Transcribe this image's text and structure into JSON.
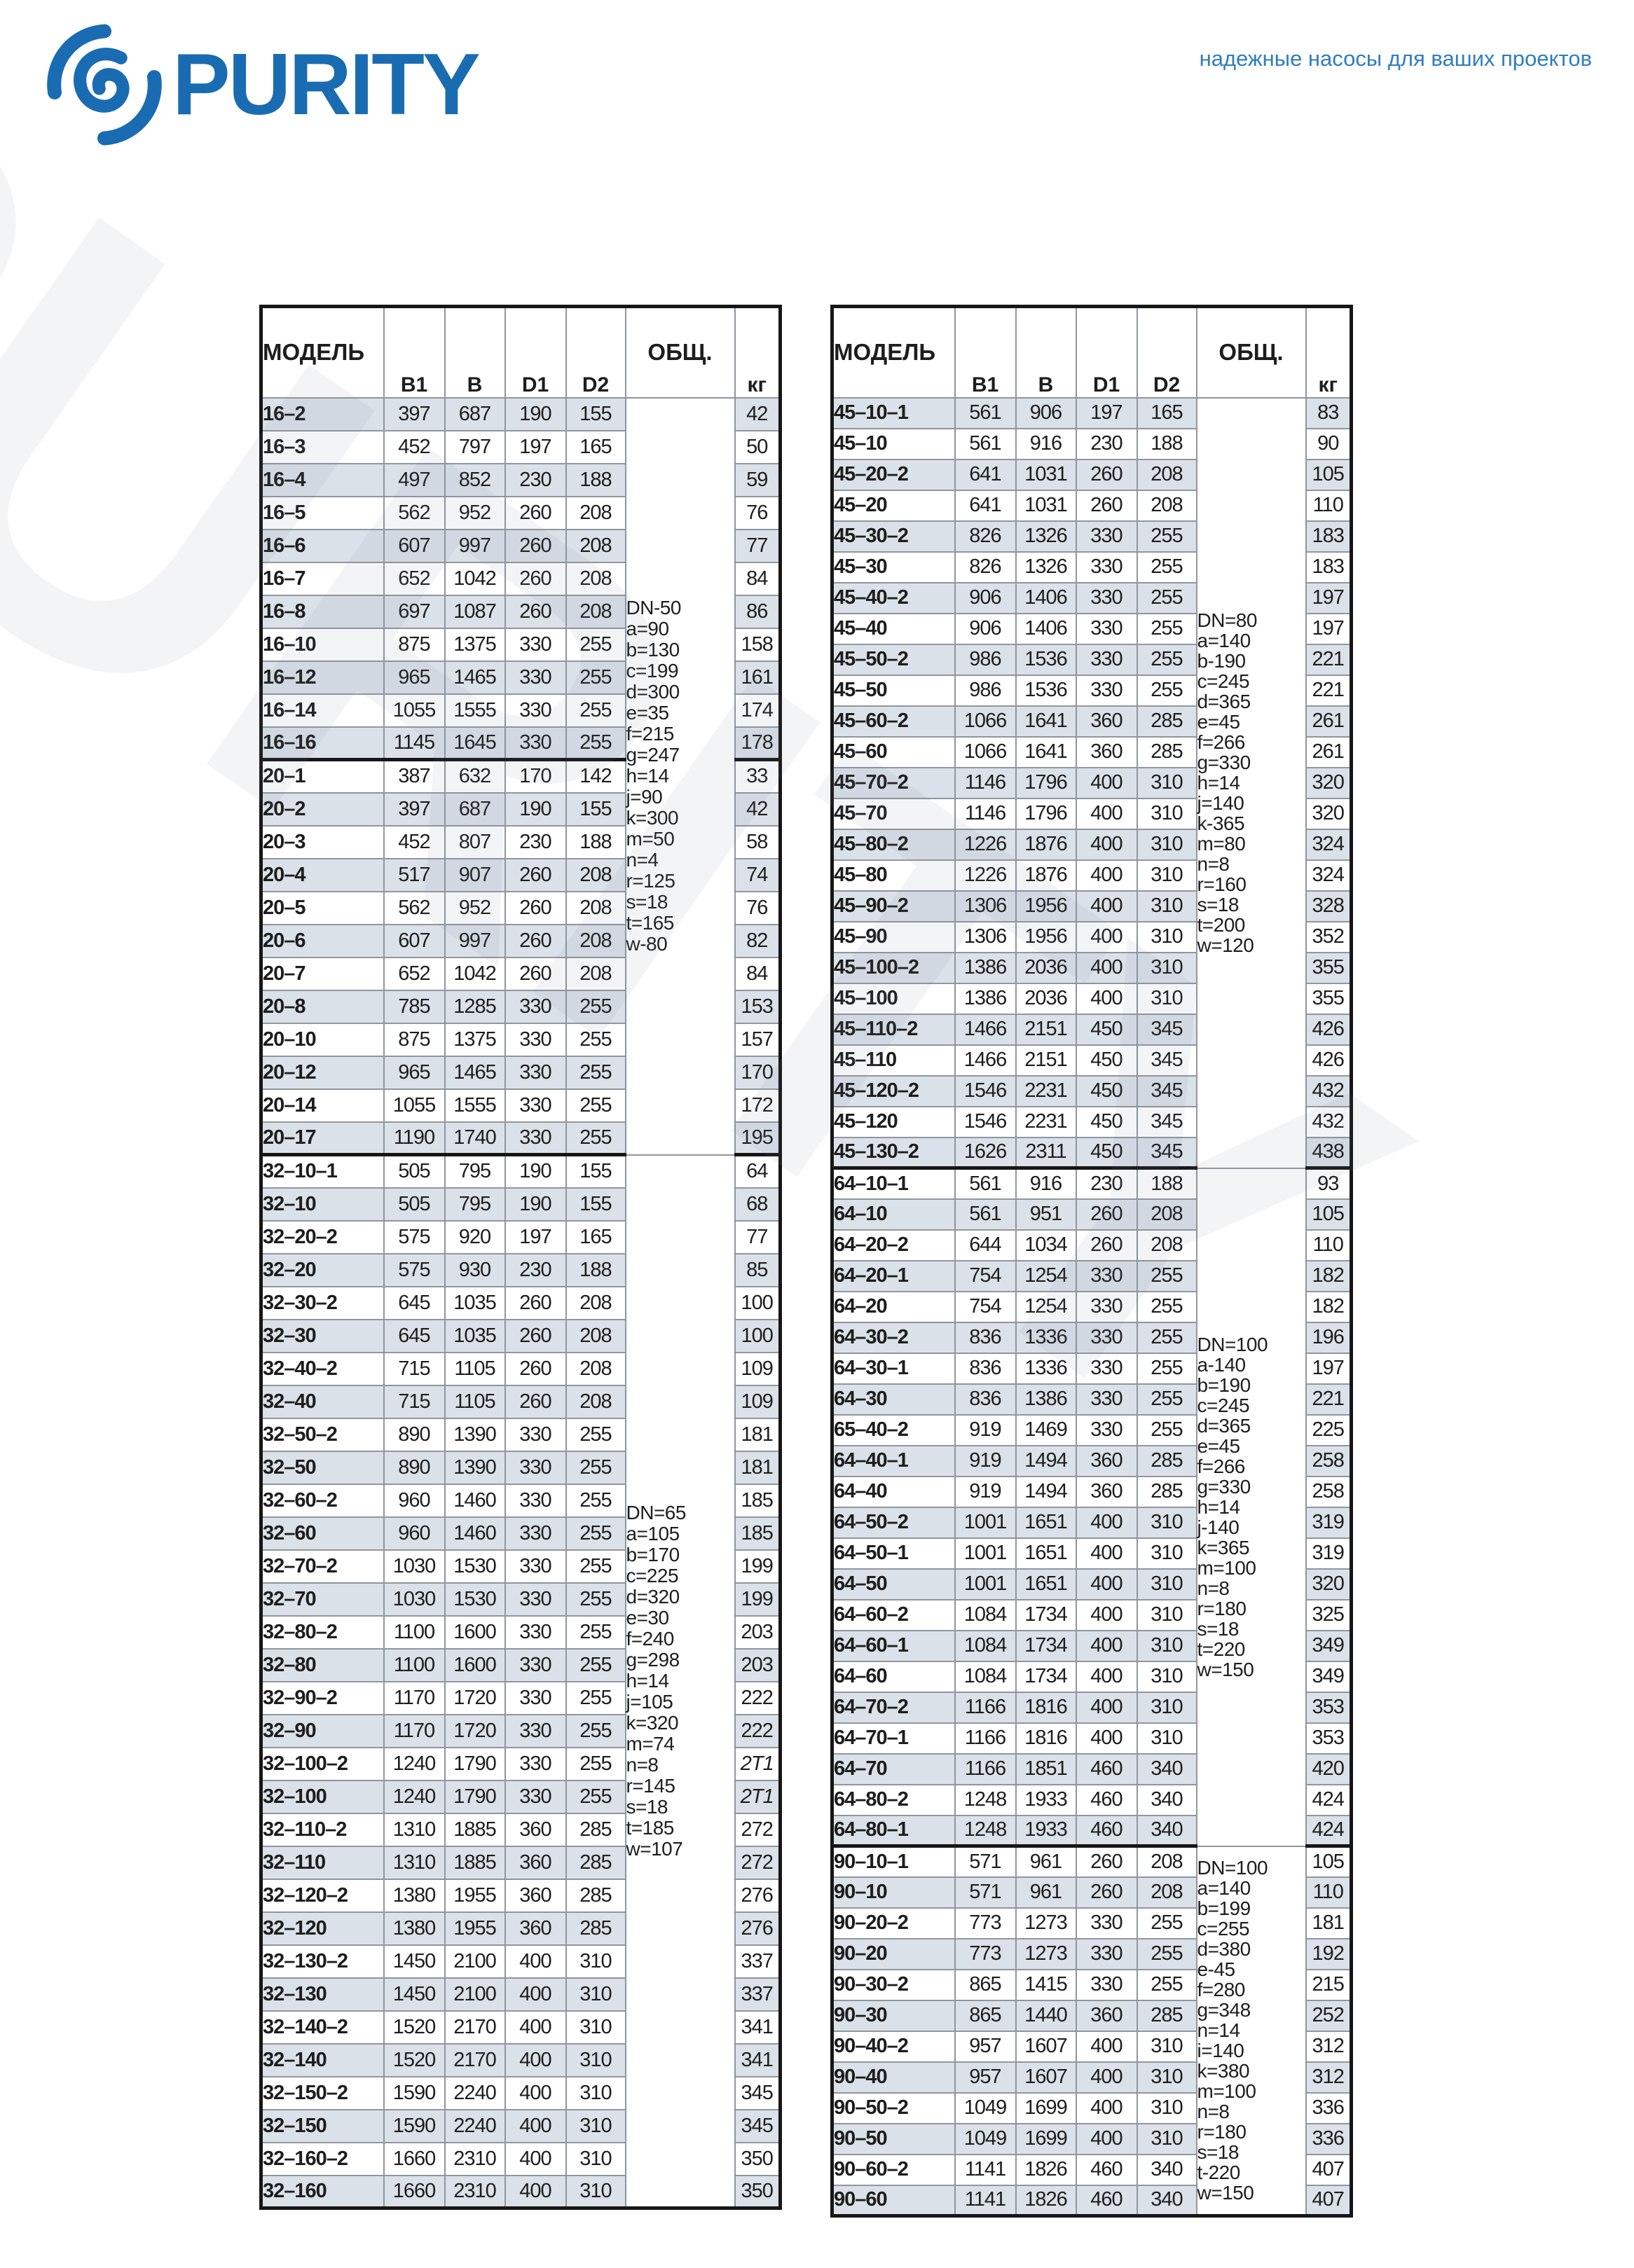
{
  "page": {
    "brand": "PURITY",
    "tagline": "надежные насосы для ваших проектов",
    "accent_color": "#1a6cb2",
    "row_shade_color": "#dbe1e8"
  },
  "columns": {
    "model": "МОДЕЛЬ",
    "b1": "B1",
    "b": "B",
    "d1": "D1",
    "d2": "D2",
    "obshch": "ОБЩ.",
    "kg": "кг"
  },
  "tables": [
    {
      "name": "left",
      "specs": [
        {
          "start": 0,
          "count": 23,
          "lines": [
            "DN-50",
            "a=90",
            "b=130",
            "c=199",
            "d=300",
            "e=35",
            "f=215",
            "g=247",
            "h=14",
            "j=90",
            "k=300",
            "m=50",
            "n=4",
            "r=125",
            "s=18",
            "t=165",
            "w-80"
          ]
        },
        {
          "start": 23,
          "count": 32,
          "lines": [
            "DN=65",
            "a=105",
            "b=170",
            "c=225",
            "d=320",
            "e=30",
            "f=240",
            "g=298",
            "h=14",
            "j=105",
            "k=320",
            "m=74",
            "n=8",
            "r=145",
            "s=18",
            "t=185",
            "w=107"
          ]
        }
      ],
      "thick_after": [
        10,
        22
      ],
      "rows": [
        [
          "16–2",
          "397",
          "687",
          "190",
          "155",
          "42"
        ],
        [
          "16–3",
          "452",
          "797",
          "197",
          "165",
          "50"
        ],
        [
          "16–4",
          "497",
          "852",
          "230",
          "188",
          "59"
        ],
        [
          "16–5",
          "562",
          "952",
          "260",
          "208",
          "76"
        ],
        [
          "16–6",
          "607",
          "997",
          "260",
          "208",
          "77"
        ],
        [
          "16–7",
          "652",
          "1042",
          "260",
          "208",
          "84"
        ],
        [
          "16–8",
          "697",
          "1087",
          "260",
          "208",
          "86"
        ],
        [
          "16–10",
          "875",
          "1375",
          "330",
          "255",
          "158"
        ],
        [
          "16–12",
          "965",
          "1465",
          "330",
          "255",
          "161"
        ],
        [
          "16–14",
          "1055",
          "1555",
          "330",
          "255",
          "174"
        ],
        [
          "16–16",
          "1145",
          "1645",
          "330",
          "255",
          "178"
        ],
        [
          "20–1",
          "387",
          "632",
          "170",
          "142",
          "33"
        ],
        [
          "20–2",
          "397",
          "687",
          "190",
          "155",
          "42"
        ],
        [
          "20–3",
          "452",
          "807",
          "230",
          "188",
          "58"
        ],
        [
          "20–4",
          "517",
          "907",
          "260",
          "208",
          "74"
        ],
        [
          "20–5",
          "562",
          "952",
          "260",
          "208",
          "76"
        ],
        [
          "20–6",
          "607",
          "997",
          "260",
          "208",
          "82"
        ],
        [
          "20–7",
          "652",
          "1042",
          "260",
          "208",
          "84"
        ],
        [
          "20–8",
          "785",
          "1285",
          "330",
          "255",
          "153"
        ],
        [
          "20–10",
          "875",
          "1375",
          "330",
          "255",
          "157"
        ],
        [
          "20–12",
          "965",
          "1465",
          "330",
          "255",
          "170"
        ],
        [
          "20–14",
          "1055",
          "1555",
          "330",
          "255",
          "172"
        ],
        [
          "20–17",
          "1190",
          "1740",
          "330",
          "255",
          "195"
        ],
        [
          "32–10–1",
          "505",
          "795",
          "190",
          "155",
          "64"
        ],
        [
          "32–10",
          "505",
          "795",
          "190",
          "155",
          "68"
        ],
        [
          "32–20–2",
          "575",
          "920",
          "197",
          "165",
          "77"
        ],
        [
          "32–20",
          "575",
          "930",
          "230",
          "188",
          "85"
        ],
        [
          "32–30–2",
          "645",
          "1035",
          "260",
          "208",
          "100"
        ],
        [
          "32–30",
          "645",
          "1035",
          "260",
          "208",
          "100"
        ],
        [
          "32–40–2",
          "715",
          "1105",
          "260",
          "208",
          "109"
        ],
        [
          "32–40",
          "715",
          "1105",
          "260",
          "208",
          "109"
        ],
        [
          "32–50–2",
          "890",
          "1390",
          "330",
          "255",
          "181"
        ],
        [
          "32–50",
          "890",
          "1390",
          "330",
          "255",
          "181"
        ],
        [
          "32–60–2",
          "960",
          "1460",
          "330",
          "255",
          "185"
        ],
        [
          "32–60",
          "960",
          "1460",
          "330",
          "255",
          "185"
        ],
        [
          "32–70–2",
          "1030",
          "1530",
          "330",
          "255",
          "199"
        ],
        [
          "32–70",
          "1030",
          "1530",
          "330",
          "255",
          "199"
        ],
        [
          "32–80–2",
          "1100",
          "1600",
          "330",
          "255",
          "203"
        ],
        [
          "32–80",
          "1100",
          "1600",
          "330",
          "255",
          "203"
        ],
        [
          "32–90–2",
          "1170",
          "1720",
          "330",
          "255",
          "222"
        ],
        [
          "32–90",
          "1170",
          "1720",
          "330",
          "255",
          "222"
        ],
        [
          "32–100–2",
          "1240",
          "1790",
          "330",
          "255",
          "2T1"
        ],
        [
          "32–100",
          "1240",
          "1790",
          "330",
          "255",
          "2T1"
        ],
        [
          "32–110–2",
          "1310",
          "1885",
          "360",
          "285",
          "272"
        ],
        [
          "32–110",
          "1310",
          "1885",
          "360",
          "285",
          "272"
        ],
        [
          "32–120–2",
          "1380",
          "1955",
          "360",
          "285",
          "276"
        ],
        [
          "32–120",
          "1380",
          "1955",
          "360",
          "285",
          "276"
        ],
        [
          "32–130–2",
          "1450",
          "2100",
          "400",
          "310",
          "337"
        ],
        [
          "32–130",
          "1450",
          "2100",
          "400",
          "310",
          "337"
        ],
        [
          "32–140–2",
          "1520",
          "2170",
          "400",
          "310",
          "341"
        ],
        [
          "32–140",
          "1520",
          "2170",
          "400",
          "310",
          "341"
        ],
        [
          "32–150–2",
          "1590",
          "2240",
          "400",
          "310",
          "345"
        ],
        [
          "32–150",
          "1590",
          "2240",
          "400",
          "310",
          "345"
        ],
        [
          "32–160–2",
          "1660",
          "2310",
          "400",
          "310",
          "350"
        ],
        [
          "32–160",
          "1660",
          "2310",
          "400",
          "310",
          "350"
        ]
      ]
    },
    {
      "name": "right",
      "specs": [
        {
          "start": 0,
          "count": 25,
          "lines": [
            "DN=80",
            "a=140",
            "b-190",
            "c=245",
            "d=365",
            "e=45",
            "f=266",
            "g=330",
            "h=14",
            "j=140",
            "k-365",
            "m=80",
            "n=8",
            "r=160",
            "s=18",
            "t=200",
            "w=120"
          ]
        },
        {
          "start": 25,
          "count": 22,
          "lines": [
            "DN=100",
            "a-140",
            "b=190",
            "c=245",
            "d=365",
            "e=45",
            "f=266",
            "g=330",
            "h=14",
            "j-140",
            "k=365",
            "m=100",
            "n=8",
            "r=180",
            "s=18",
            "t=220",
            "w=150"
          ]
        },
        {
          "start": 47,
          "count": 12,
          "lines": [
            "DN=100",
            "a=140",
            "b=199",
            "c=255",
            "d=380",
            "e-45",
            "f=280",
            "g=348",
            "n=14",
            "i=140",
            "k=380",
            "m=100",
            "n=8",
            "r=180",
            "s=18",
            "t-220",
            "w=150"
          ]
        }
      ],
      "thick_after": [
        24,
        46
      ],
      "rows": [
        [
          "45–10–1",
          "561",
          "906",
          "197",
          "165",
          "83"
        ],
        [
          "45–10",
          "561",
          "916",
          "230",
          "188",
          "90"
        ],
        [
          "45–20–2",
          "641",
          "1031",
          "260",
          "208",
          "105"
        ],
        [
          "45–20",
          "641",
          "1031",
          "260",
          "208",
          "110"
        ],
        [
          "45–30–2",
          "826",
          "1326",
          "330",
          "255",
          "183"
        ],
        [
          "45–30",
          "826",
          "1326",
          "330",
          "255",
          "183"
        ],
        [
          "45–40–2",
          "906",
          "1406",
          "330",
          "255",
          "197"
        ],
        [
          "45–40",
          "906",
          "1406",
          "330",
          "255",
          "197"
        ],
        [
          "45–50–2",
          "986",
          "1536",
          "330",
          "255",
          "221"
        ],
        [
          "45–50",
          "986",
          "1536",
          "330",
          "255",
          "221"
        ],
        [
          "45–60–2",
          "1066",
          "1641",
          "360",
          "285",
          "261"
        ],
        [
          "45–60",
          "1066",
          "1641",
          "360",
          "285",
          "261"
        ],
        [
          "45–70–2",
          "1146",
          "1796",
          "400",
          "310",
          "320"
        ],
        [
          "45–70",
          "1146",
          "1796",
          "400",
          "310",
          "320"
        ],
        [
          "45–80–2",
          "1226",
          "1876",
          "400",
          "310",
          "324"
        ],
        [
          "45–80",
          "1226",
          "1876",
          "400",
          "310",
          "324"
        ],
        [
          "45–90–2",
          "1306",
          "1956",
          "400",
          "310",
          "328"
        ],
        [
          "45–90",
          "1306",
          "1956",
          "400",
          "310",
          "352"
        ],
        [
          "45–100–2",
          "1386",
          "2036",
          "400",
          "310",
          "355"
        ],
        [
          "45–100",
          "1386",
          "2036",
          "400",
          "310",
          "355"
        ],
        [
          "45–110–2",
          "1466",
          "2151",
          "450",
          "345",
          "426"
        ],
        [
          "45–110",
          "1466",
          "2151",
          "450",
          "345",
          "426"
        ],
        [
          "45–120–2",
          "1546",
          "2231",
          "450",
          "345",
          "432"
        ],
        [
          "45–120",
          "1546",
          "2231",
          "450",
          "345",
          "432"
        ],
        [
          "45–130–2",
          "1626",
          "2311",
          "450",
          "345",
          "438"
        ],
        [
          "64–10–1",
          "561",
          "916",
          "230",
          "188",
          "93"
        ],
        [
          "64–10",
          "561",
          "951",
          "260",
          "208",
          "105"
        ],
        [
          "64–20–2",
          "644",
          "1034",
          "260",
          "208",
          "110"
        ],
        [
          "64–20–1",
          "754",
          "1254",
          "330",
          "255",
          "182"
        ],
        [
          "64–20",
          "754",
          "1254",
          "330",
          "255",
          "182"
        ],
        [
          "64–30–2",
          "836",
          "1336",
          "330",
          "255",
          "196"
        ],
        [
          "64–30–1",
          "836",
          "1336",
          "330",
          "255",
          "197"
        ],
        [
          "64–30",
          "836",
          "1386",
          "330",
          "255",
          "221"
        ],
        [
          "65–40–2",
          "919",
          "1469",
          "330",
          "255",
          "225"
        ],
        [
          "64–40–1",
          "919",
          "1494",
          "360",
          "285",
          "258"
        ],
        [
          "64–40",
          "919",
          "1494",
          "360",
          "285",
          "258"
        ],
        [
          "64–50–2",
          "1001",
          "1651",
          "400",
          "310",
          "319"
        ],
        [
          "64–50–1",
          "1001",
          "1651",
          "400",
          "310",
          "319"
        ],
        [
          "64–50",
          "1001",
          "1651",
          "400",
          "310",
          "320"
        ],
        [
          "64–60–2",
          "1084",
          "1734",
          "400",
          "310",
          "325"
        ],
        [
          "64–60–1",
          "1084",
          "1734",
          "400",
          "310",
          "349"
        ],
        [
          "64–60",
          "1084",
          "1734",
          "400",
          "310",
          "349"
        ],
        [
          "64–70–2",
          "1166",
          "1816",
          "400",
          "310",
          "353"
        ],
        [
          "64–70–1",
          "1166",
          "1816",
          "400",
          "310",
          "353"
        ],
        [
          "64–70",
          "1166",
          "1851",
          "460",
          "340",
          "420"
        ],
        [
          "64–80–2",
          "1248",
          "1933",
          "460",
          "340",
          "424"
        ],
        [
          "64–80–1",
          "1248",
          "1933",
          "460",
          "340",
          "424"
        ],
        [
          "90–10–1",
          "571",
          "961",
          "260",
          "208",
          "105"
        ],
        [
          "90–10",
          "571",
          "961",
          "260",
          "208",
          "110"
        ],
        [
          "90–20–2",
          "773",
          "1273",
          "330",
          "255",
          "181"
        ],
        [
          "90–20",
          "773",
          "1273",
          "330",
          "255",
          "192"
        ],
        [
          "90–30–2",
          "865",
          "1415",
          "330",
          "255",
          "215"
        ],
        [
          "90–30",
          "865",
          "1440",
          "360",
          "285",
          "252"
        ],
        [
          "90–40–2",
          "957",
          "1607",
          "400",
          "310",
          "312"
        ],
        [
          "90–40",
          "957",
          "1607",
          "400",
          "310",
          "312"
        ],
        [
          "90–50–2",
          "1049",
          "1699",
          "400",
          "310",
          "336"
        ],
        [
          "90–50",
          "1049",
          "1699",
          "400",
          "310",
          "336"
        ],
        [
          "90–60–2",
          "1141",
          "1826",
          "460",
          "340",
          "407"
        ],
        [
          "90–60",
          "1141",
          "1826",
          "460",
          "340",
          "407"
        ]
      ]
    }
  ]
}
